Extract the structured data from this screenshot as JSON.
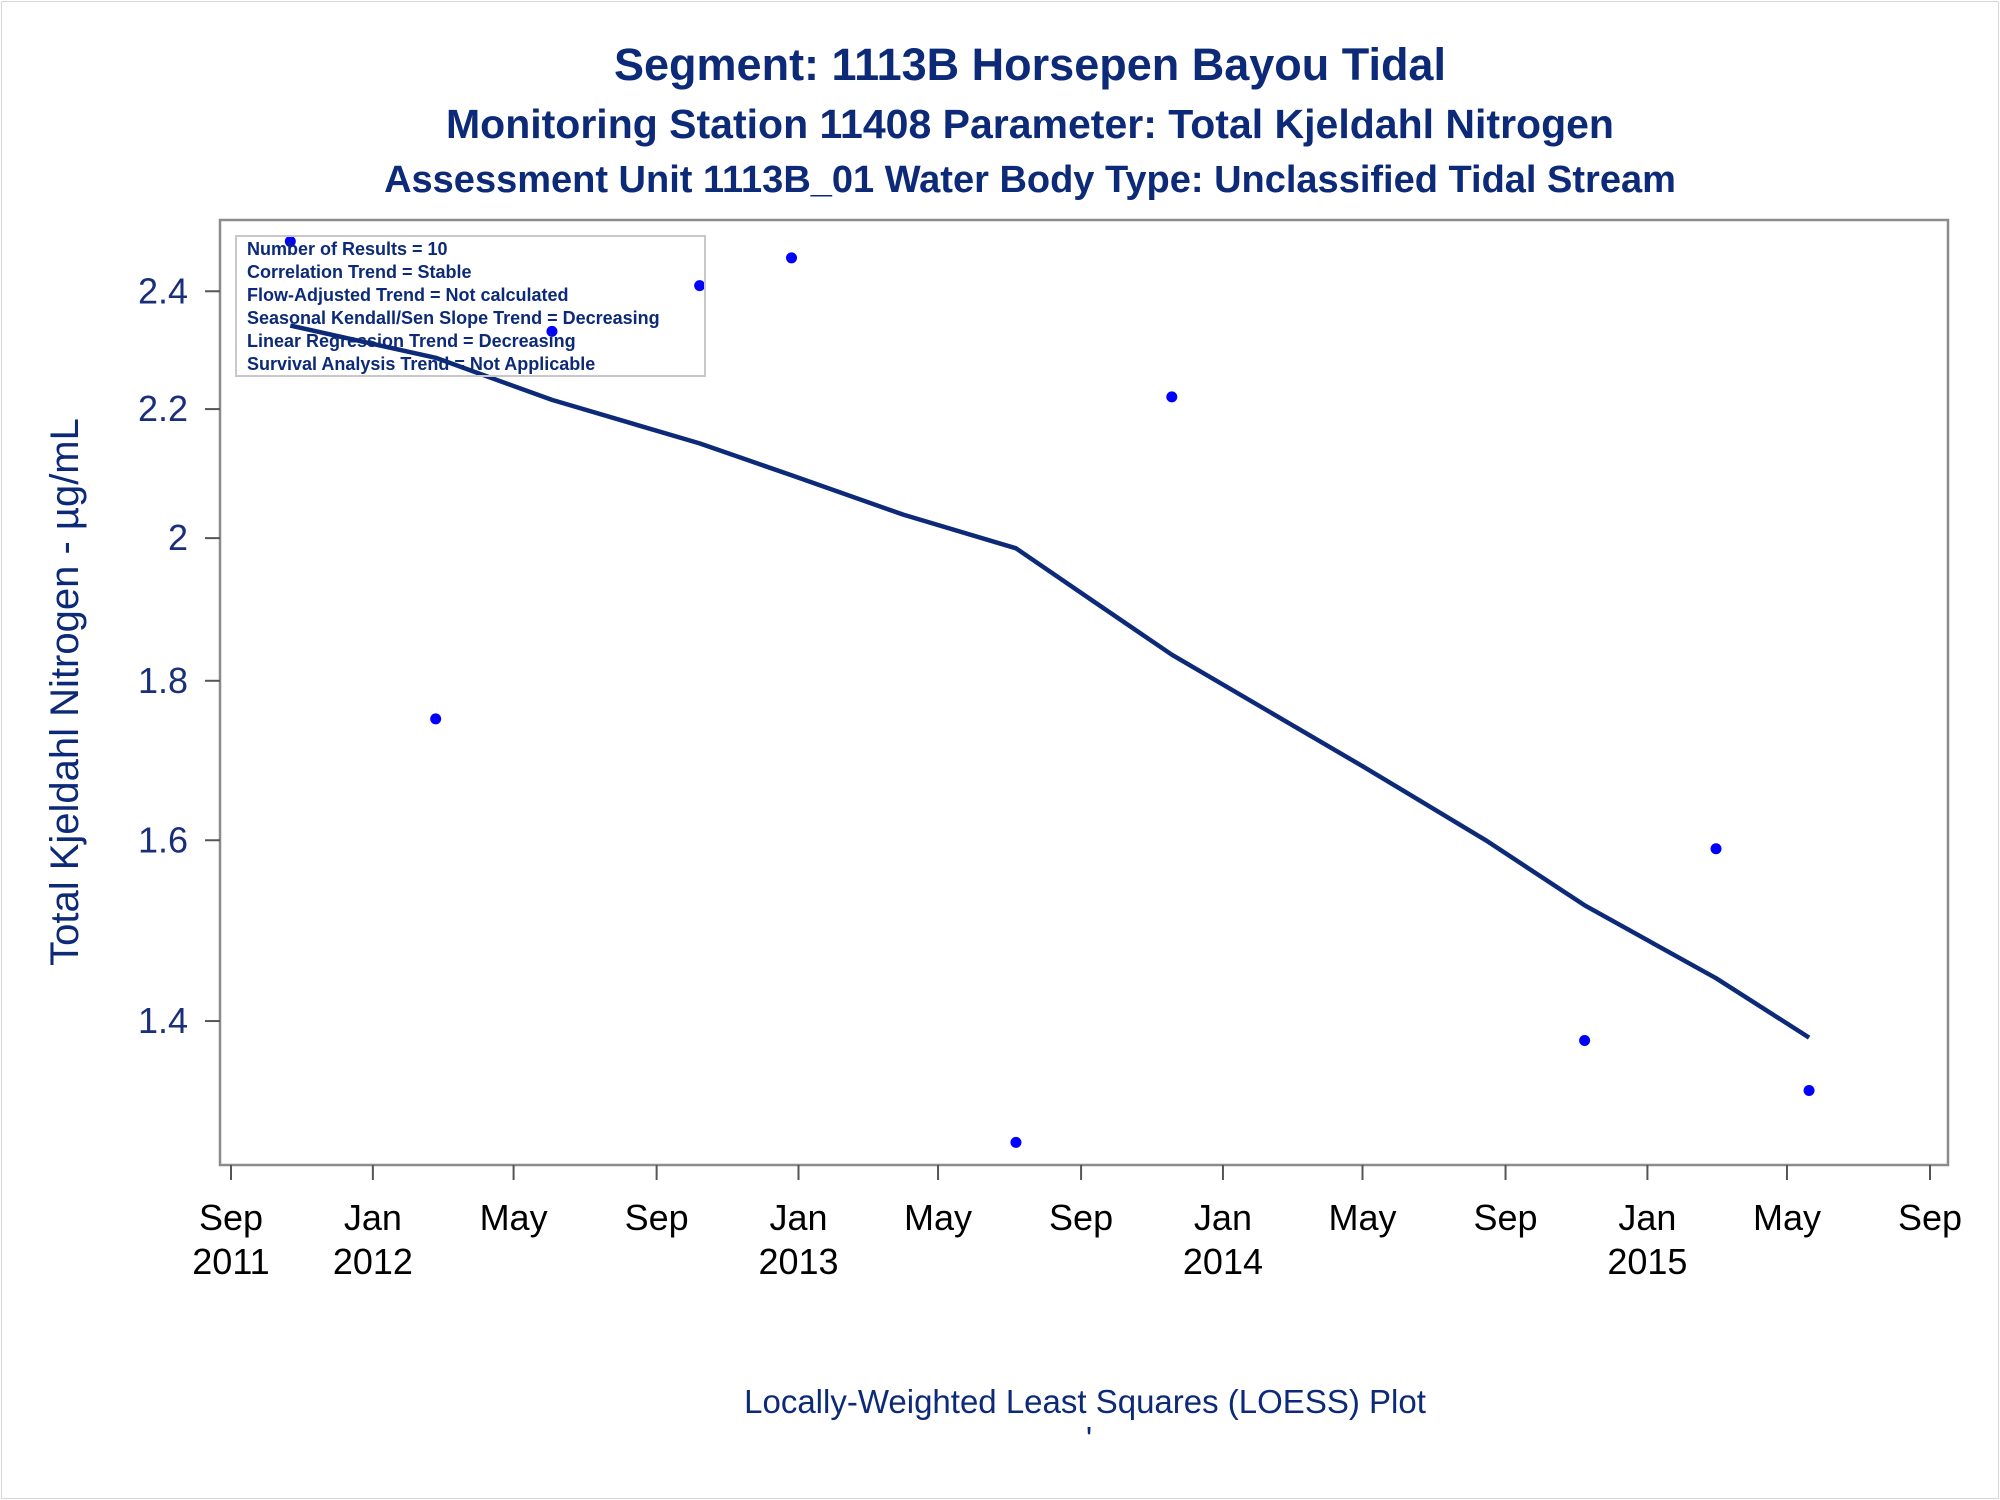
{
  "chart_data": {
    "type": "scatter",
    "title": "Segment: 1113B  Horsepen Bayou Tidal",
    "subtitle": "Monitoring Station 11408 Parameter: Total Kjeldahl Nitrogen",
    "subtitle2": "Assessment Unit 1113B_01   Water Body Type: Unclassified Tidal Stream",
    "xlabel": "",
    "ylabel": "Total Kjeldahl Nitrogen -  µg/mL",
    "footnote": "Locally-Weighted Least Squares (LOESS) Plot",
    "footnote_mark": "'",
    "x_scale": "date",
    "y_scale": "log",
    "xlim": [
      "2011-09-01",
      "2015-09-01"
    ],
    "ylim": [
      1.27,
      2.5
    ],
    "grid": false,
    "x_ticks": [
      {
        "value": "2011-09-01",
        "line1": "Sep",
        "line2": "2011"
      },
      {
        "value": "2012-01-01",
        "line1": "Jan",
        "line2": "2012"
      },
      {
        "value": "2012-05-01",
        "line1": "May",
        "line2": ""
      },
      {
        "value": "2012-09-01",
        "line1": "Sep",
        "line2": ""
      },
      {
        "value": "2013-01-01",
        "line1": "Jan",
        "line2": "2013"
      },
      {
        "value": "2013-05-01",
        "line1": "May",
        "line2": ""
      },
      {
        "value": "2013-09-01",
        "line1": "Sep",
        "line2": ""
      },
      {
        "value": "2014-01-01",
        "line1": "Jan",
        "line2": "2014"
      },
      {
        "value": "2014-05-01",
        "line1": "May",
        "line2": ""
      },
      {
        "value": "2014-09-01",
        "line1": "Sep",
        "line2": ""
      },
      {
        "value": "2015-01-01",
        "line1": "Jan",
        "line2": "2015"
      },
      {
        "value": "2015-05-01",
        "line1": "May",
        "line2": ""
      },
      {
        "value": "2015-09-01",
        "line1": "Sep",
        "line2": ""
      }
    ],
    "y_ticks": [
      {
        "value": 1.4,
        "label": "1.4"
      },
      {
        "value": 1.6,
        "label": "1.6"
      },
      {
        "value": 1.8,
        "label": "1.8"
      },
      {
        "value": 2.0,
        "label": "2"
      },
      {
        "value": 2.2,
        "label": "2.2"
      },
      {
        "value": 2.4,
        "label": "2.4"
      }
    ],
    "stats_box": [
      "Number of Results = 10",
      "Correlation Trend = Stable",
      "Flow-Adjusted Trend = Not calculated",
      "Seasonal Kendall/Sen Slope Trend = Decreasing",
      "Linear Regression Trend = Decreasing",
      "Survival Analysis Trend = Not Applicable"
    ],
    "series": [
      {
        "type": "scatter",
        "color": "#0000ff",
        "points": [
          {
            "x": "2011-10-22",
            "y": 2.49
          },
          {
            "x": "2012-02-24",
            "y": 1.75
          },
          {
            "x": "2012-06-03",
            "y": 2.33
          },
          {
            "x": "2012-10-08",
            "y": 2.41
          },
          {
            "x": "2012-12-26",
            "y": 2.46
          },
          {
            "x": "2013-07-07",
            "y": 1.28
          },
          {
            "x": "2013-11-18",
            "y": 2.22
          },
          {
            "x": "2014-11-08",
            "y": 1.38
          },
          {
            "x": "2015-03-01",
            "y": 1.59
          },
          {
            "x": "2015-05-20",
            "y": 1.33
          }
        ]
      },
      {
        "type": "line",
        "color": "#0c2a78",
        "points": [
          {
            "x": "2011-10-22",
            "y": 2.34
          },
          {
            "x": "2012-02-24",
            "y": 2.285
          },
          {
            "x": "2012-06-03",
            "y": 2.215
          },
          {
            "x": "2012-10-08",
            "y": 2.145
          },
          {
            "x": "2012-12-26",
            "y": 2.095
          },
          {
            "x": "2013-04-01",
            "y": 2.035
          },
          {
            "x": "2013-07-07",
            "y": 1.985
          },
          {
            "x": "2013-09-15",
            "y": 1.905
          },
          {
            "x": "2013-11-18",
            "y": 1.835
          },
          {
            "x": "2014-05-01",
            "y": 1.69
          },
          {
            "x": "2014-08-15",
            "y": 1.6
          },
          {
            "x": "2014-11-08",
            "y": 1.525
          },
          {
            "x": "2015-03-01",
            "y": 1.445
          },
          {
            "x": "2015-05-20",
            "y": 1.383
          }
        ]
      }
    ]
  }
}
